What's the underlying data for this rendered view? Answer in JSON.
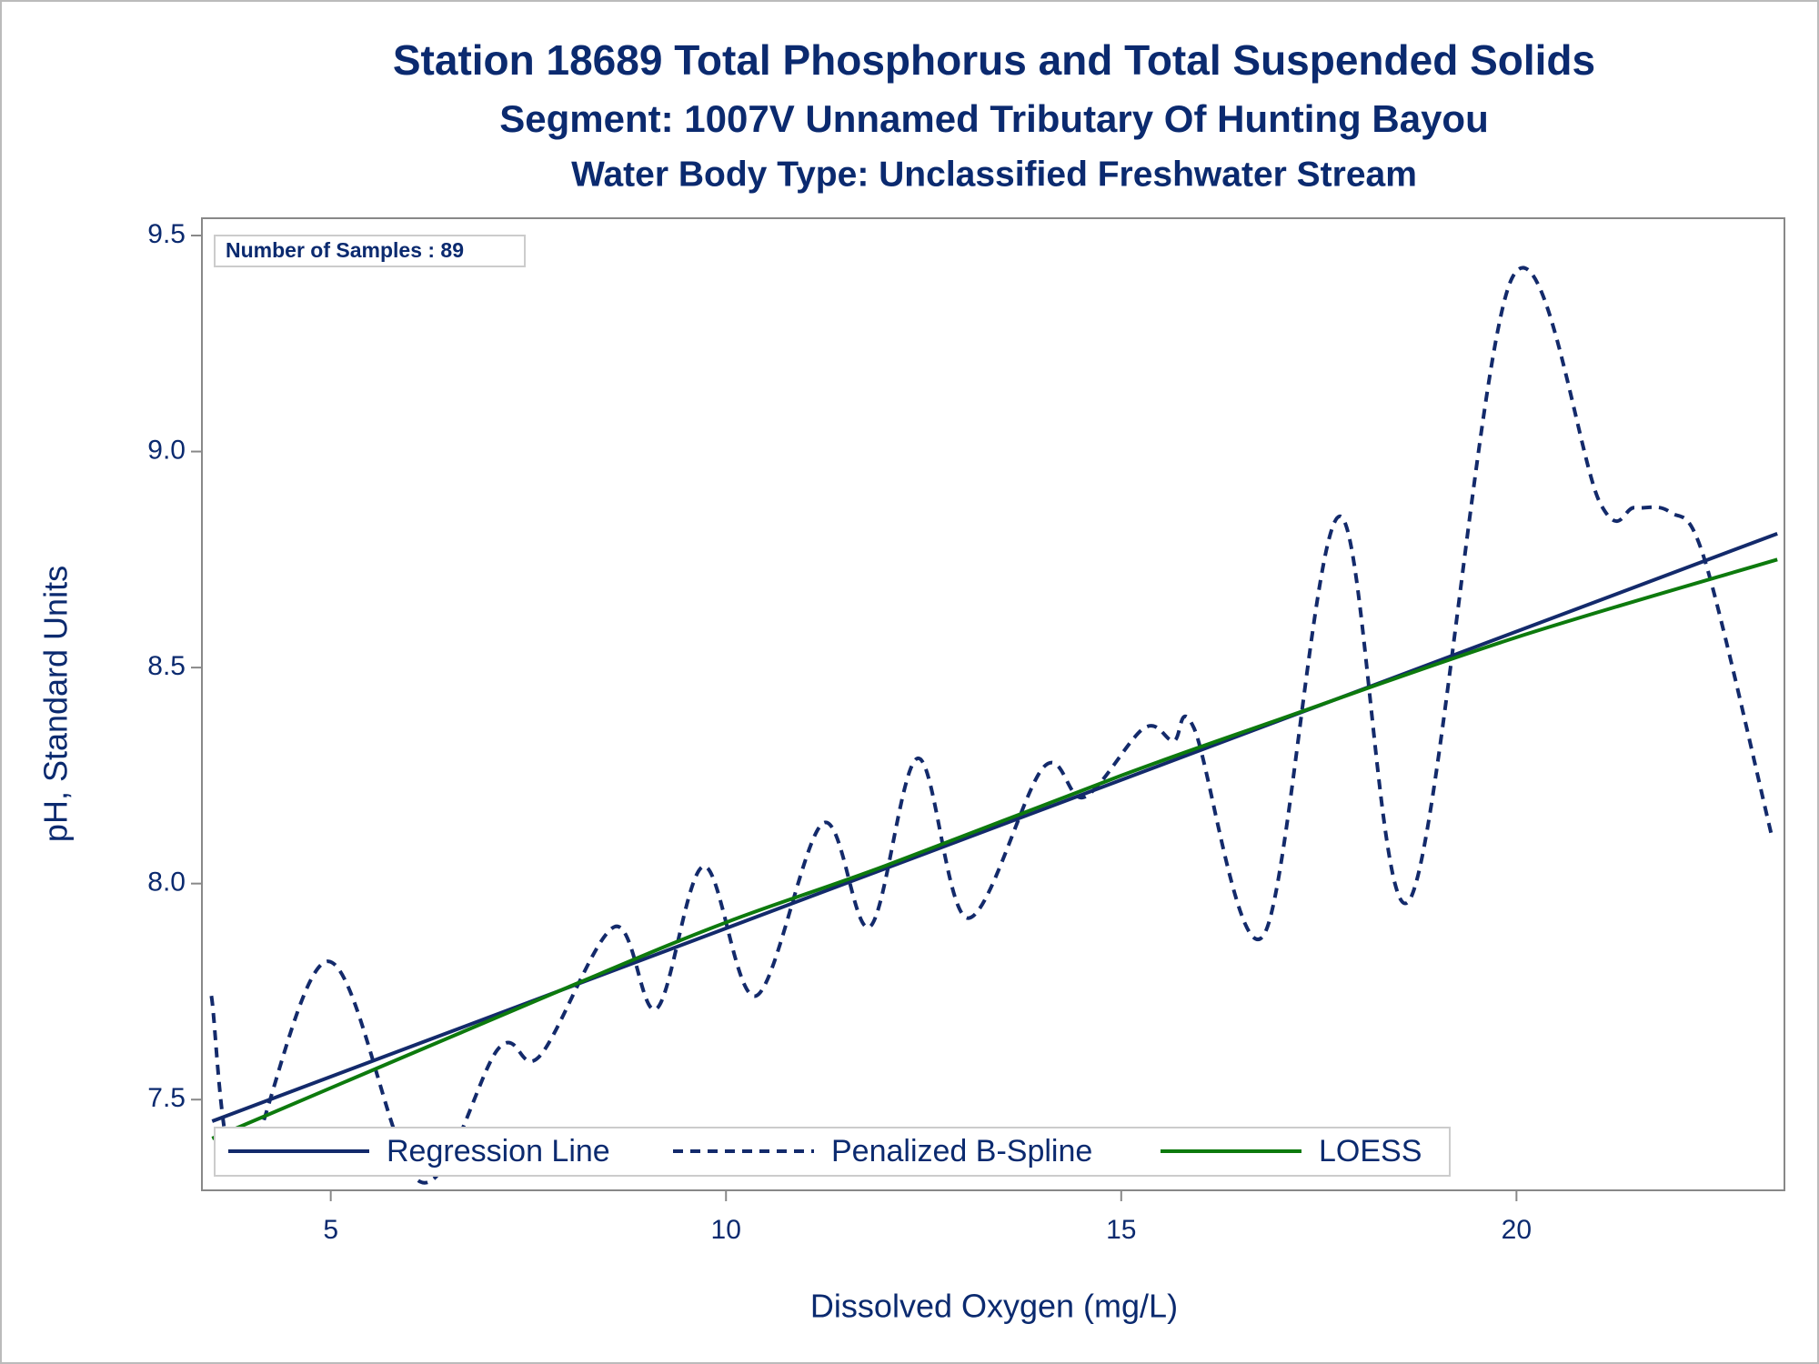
{
  "chart_data": {
    "type": "line",
    "title": "Station 18689  Total Phosphorus and Total Suspended Solids",
    "subtitles": [
      "Segment: 1007V  Unnamed Tributary Of Hunting Bayou",
      "Water Body Type: Unclassified Freshwater Stream"
    ],
    "annotation": "Number of Samples : 89",
    "xlabel": "Dissolved Oxygen (mg/L)",
    "ylabel": "pH, Standard Units",
    "xlim": [
      3.37,
      23.39
    ],
    "ylim": [
      7.29,
      9.54
    ],
    "xticks": [
      5,
      10,
      15,
      20
    ],
    "yticks": [
      7.5,
      {
        "value": 8,
        "label": "8.0"
      },
      8.5,
      {
        "value": 9,
        "label": "9.0"
      },
      9.5
    ],
    "series": [
      {
        "name": "Regression Line",
        "color": "#132a6b",
        "dash": "solid",
        "x": [
          3.5,
          23.3
        ],
        "values": [
          7.45,
          8.81
        ]
      },
      {
        "name": "Penalized B-Spline",
        "color": "#132a6b",
        "dash": "dashed",
        "x": [
          3.49,
          3.86,
          4.97,
          6.13,
          7.13,
          7.64,
          8.59,
          9.12,
          9.72,
          10.38,
          11.23,
          11.82,
          12.43,
          13.06,
          14.02,
          14.53,
          15.29,
          15.66,
          15.92,
          16.8,
          17.76,
          18.64,
          19.94,
          21.06,
          21.5,
          21.94,
          22.38,
          23.23
        ],
        "values": [
          7.74,
          7.33,
          7.82,
          7.31,
          7.62,
          7.6,
          7.9,
          7.71,
          8.04,
          7.74,
          8.14,
          7.9,
          8.29,
          7.92,
          8.27,
          8.2,
          8.36,
          8.33,
          8.36,
          7.88,
          8.85,
          7.96,
          9.4,
          8.88,
          8.87,
          8.86,
          8.75,
          8.11
        ]
      },
      {
        "name": "LOESS",
        "color": "#0d7a0d",
        "dash": "solid",
        "x": [
          3.5,
          8,
          10,
          12,
          15,
          17,
          20,
          23.3
        ],
        "values": [
          7.41,
          7.76,
          7.91,
          8.04,
          8.25,
          8.38,
          8.57,
          8.75
        ]
      }
    ]
  }
}
